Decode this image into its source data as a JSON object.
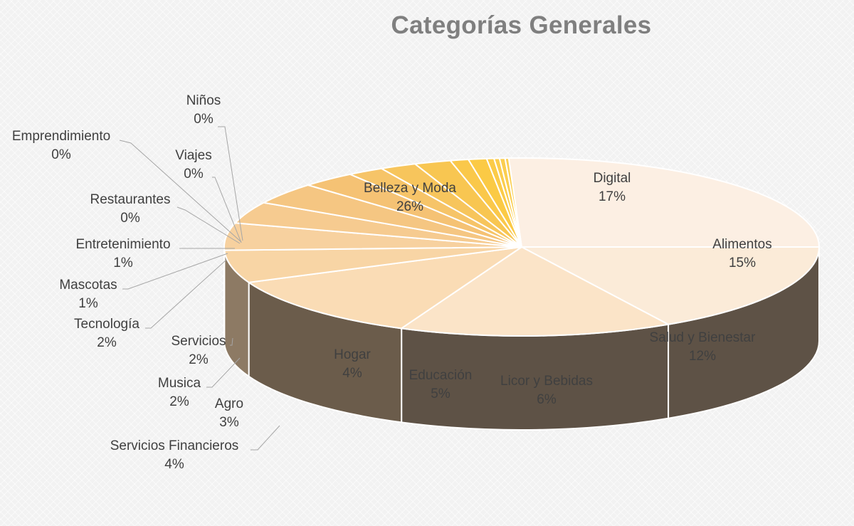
{
  "chart_data": {
    "type": "pie",
    "title": "Categorías Generales",
    "slices": [
      {
        "name": "Belleza y Moda",
        "label": "26%",
        "value": 26
      },
      {
        "name": "Digital",
        "label": "17%",
        "value": 17
      },
      {
        "name": "Alimentos",
        "label": "15%",
        "value": 15
      },
      {
        "name": "Salud y Bienestar",
        "label": "12%",
        "value": 12
      },
      {
        "name": "Licor y Bebidas",
        "label": "6%",
        "value": 6
      },
      {
        "name": "Educación",
        "label": "5%",
        "value": 5
      },
      {
        "name": "Hogar",
        "label": "4%",
        "value": 4
      },
      {
        "name": "Servicios Financieros",
        "label": "4%",
        "value": 4
      },
      {
        "name": "Agro",
        "label": "3%",
        "value": 3
      },
      {
        "name": "Musica",
        "label": "2%",
        "value": 2
      },
      {
        "name": "Servicios",
        "label": "2%",
        "value": 2
      },
      {
        "name": "Tecnología",
        "label": "2%",
        "value": 2
      },
      {
        "name": "Mascotas",
        "label": "1%",
        "value": 1
      },
      {
        "name": "Entretenimiento",
        "label": "1%",
        "value": 1
      },
      {
        "name": "Restaurantes",
        "label": "0%",
        "value": 0.4
      },
      {
        "name": "Viajes",
        "label": "0%",
        "value": 0.3
      },
      {
        "name": "Emprendimiento",
        "label": "0%",
        "value": 0.3
      },
      {
        "name": "Niños",
        "label": "0%",
        "value": 0.2
      }
    ],
    "legend": "none",
    "style": "3d-pie-with-data-labels"
  }
}
